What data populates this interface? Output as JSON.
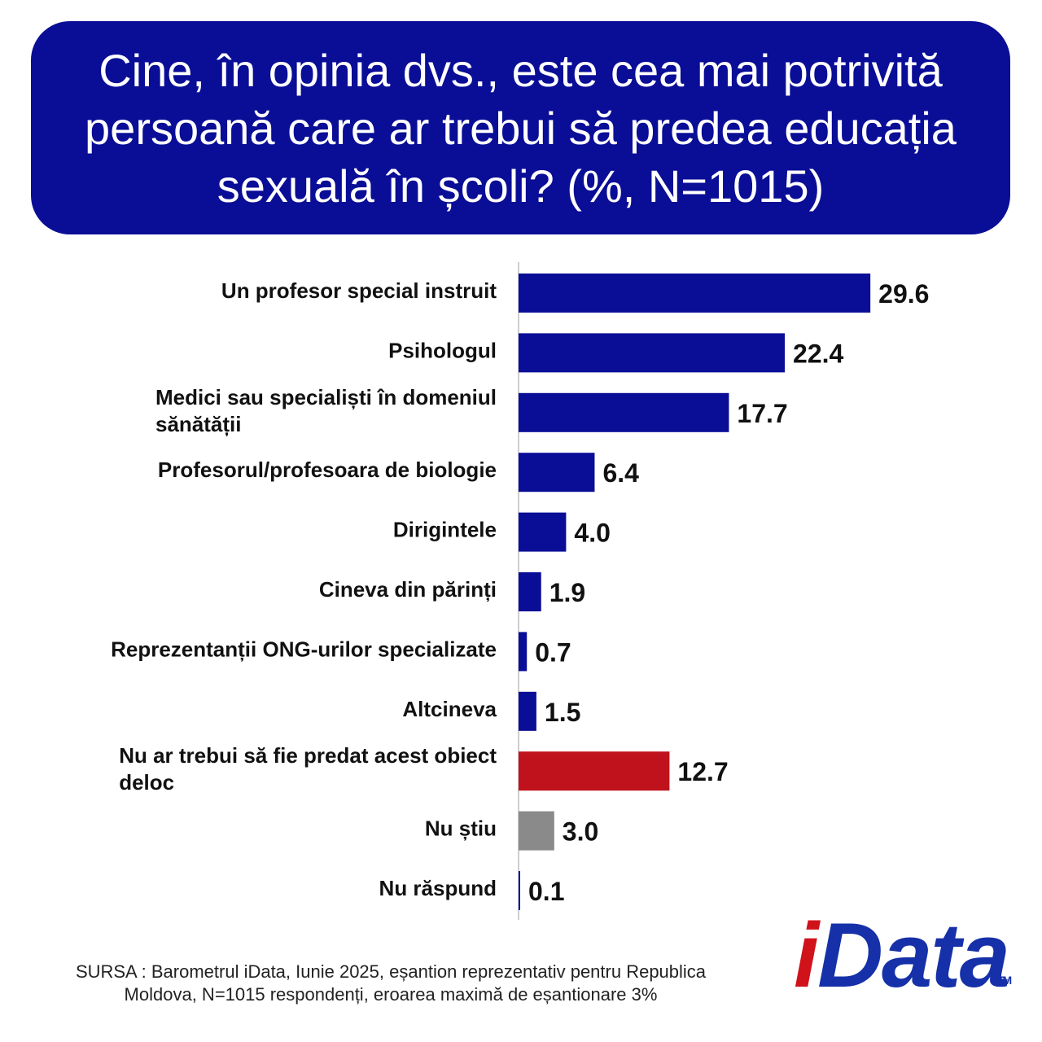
{
  "header": {
    "title_lines": [
      "Cine, în opinia dvs., este cea mai potrivită",
      "persoană care ar trebui să predea educația",
      "sexuală în școli? (%, N=1015)"
    ]
  },
  "chart_data": {
    "type": "bar",
    "orientation": "horizontal",
    "title": "Cine, în opinia dvs., este cea mai potrivită persoană care ar trebui să predea educația sexuală în școli? (%, N=1015)",
    "categories": [
      "Un profesor special instruit",
      "Psihologul",
      "Medici sau specialiști în domeniul sănătății",
      "Profesorul/profesoara de biologie",
      "Dirigintele",
      "Cineva din părinți",
      "Reprezentanții ONG-urilor specializate",
      "Altcineva",
      "Nu ar trebui să fie predat acest obiect deloc",
      "Nu știu",
      "Nu răspund"
    ],
    "category_lines": [
      [
        "Un profesor special instruit"
      ],
      [
        "Psihologul"
      ],
      [
        "Medici sau specialiști în domeniul",
        "sănătății"
      ],
      [
        "Profesorul/profesoara de biologie"
      ],
      [
        "Dirigintele"
      ],
      [
        "Cineva din părinți"
      ],
      [
        "Reprezentanții ONG-urilor specializate"
      ],
      [
        "Altcineva"
      ],
      [
        "Nu ar trebui să fie predat acest obiect",
        "deloc"
      ],
      [
        "Nu știu"
      ],
      [
        "Nu răspund"
      ]
    ],
    "values": [
      29.6,
      22.4,
      17.7,
      6.4,
      4.0,
      1.9,
      0.7,
      1.5,
      12.7,
      3.0,
      0.1
    ],
    "value_labels": [
      "29.6",
      "22.4",
      "17.7",
      "6.4",
      "4.0",
      "1.9",
      "0.7",
      "1.5",
      "12.7",
      "3.0",
      "0.1"
    ],
    "bar_colors": [
      "#0a0d96",
      "#0a0d96",
      "#0a0d96",
      "#0a0d96",
      "#0a0d96",
      "#0a0d96",
      "#0a0d96",
      "#0a0d96",
      "#c0121c",
      "#8a8a8a",
      "#0a0d96"
    ],
    "xlim": [
      0,
      30
    ],
    "grid": false
  },
  "footer": {
    "source_line1": "SURSA : Barometrul iData, Iunie 2025, eșantion reprezentativ pentru Republica",
    "source_line2": "Moldova, N=1015 respondenți, eroarea maximă de eșantionare 3%"
  },
  "logo": {
    "i": "i",
    "data": "Data",
    "tm": "TM"
  },
  "colors": {
    "header_bg": "#0a0d96",
    "primary_bar": "#0a0d96",
    "negative_bar": "#c0121c",
    "neutral_bar": "#8a8a8a"
  }
}
